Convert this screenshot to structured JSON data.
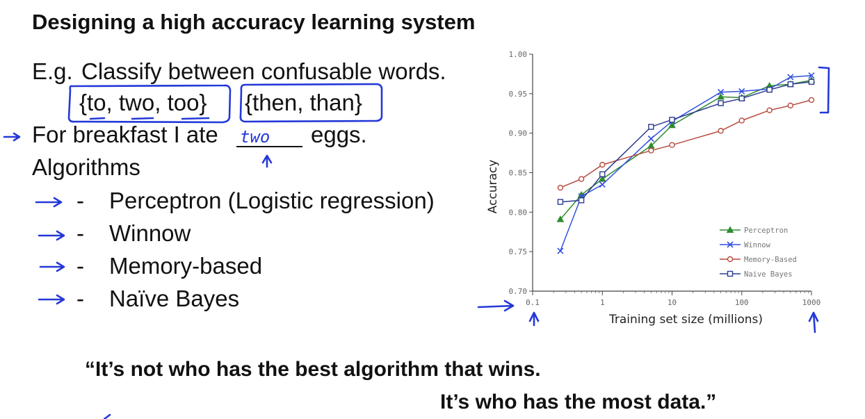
{
  "slide": {
    "title": "Designing a high accuracy learning system",
    "eg_prefix": "E.g.",
    "eg_text": "Classify between confusable words.",
    "set1": "{to, two, too}",
    "set2": "{then, than}",
    "sentence_before": "For breakfast I ate",
    "sentence_after": "eggs.",
    "handwritten_answer": "two",
    "algorithms_heading": "Algorithms",
    "algorithms": [
      "Perceptron (Logistic regression)",
      "Winnow",
      "Memory-based",
      "Naïve Bayes"
    ],
    "bullet": "-",
    "quote_line1": "“It’s not who has the best algorithm that wins.",
    "quote_line2": "It’s who has the most data.”"
  },
  "colors": {
    "ink": "#2438d8",
    "perceptron": "#2e8b2e",
    "winnow": "#3050e0",
    "memory": "#b84a3e",
    "naive": "#2b3a8f"
  },
  "chart_data": {
    "type": "line",
    "xlabel": "Training set size (millions)",
    "ylabel": "Accuracy",
    "x_scale": "log",
    "xlim": [
      0.1,
      1000
    ],
    "ylim": [
      0.7,
      1.0
    ],
    "x_ticks": [
      "0.1",
      "1",
      "10",
      "100",
      "1000"
    ],
    "y_ticks": [
      "0.70",
      "0.75",
      "0.80",
      "0.85",
      "0.90",
      "0.95",
      "1.00"
    ],
    "legend_position": "bottom-right",
    "series": [
      {
        "name": "Perceptron",
        "marker": "triangle",
        "x": [
          0.25,
          0.5,
          1,
          5,
          10,
          50,
          100,
          250,
          500,
          1000
        ],
        "y": [
          0.791,
          0.822,
          0.842,
          0.884,
          0.91,
          0.946,
          0.945,
          0.96,
          0.962,
          0.967
        ]
      },
      {
        "name": "Winnow",
        "marker": "x",
        "x": [
          0.25,
          0.5,
          1,
          5,
          10,
          50,
          100,
          250,
          500,
          1000
        ],
        "y": [
          0.751,
          0.82,
          0.835,
          0.893,
          0.915,
          0.952,
          0.953,
          0.956,
          0.971,
          0.973
        ]
      },
      {
        "name": "Memory-Based",
        "marker": "circle",
        "x": [
          0.25,
          0.5,
          1,
          5,
          10,
          50,
          100,
          250,
          500,
          1000
        ],
        "y": [
          0.831,
          0.842,
          0.86,
          0.878,
          0.885,
          0.903,
          0.916,
          0.929,
          0.935,
          0.942
        ]
      },
      {
        "name": "Naive Bayes",
        "marker": "square",
        "x": [
          0.25,
          0.5,
          1,
          5,
          10,
          50,
          100,
          250,
          500,
          1000
        ],
        "y": [
          0.813,
          0.815,
          0.848,
          0.908,
          0.917,
          0.938,
          0.944,
          0.955,
          0.962,
          0.965
        ]
      }
    ]
  }
}
